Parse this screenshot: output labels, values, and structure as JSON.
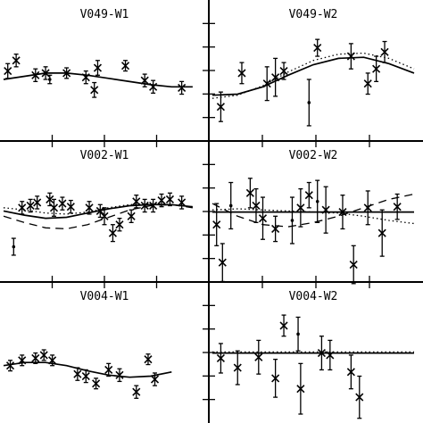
{
  "chart_data": {
    "type": "scatter",
    "panels": [
      {
        "title": "V049-W1",
        "row": 0,
        "col": 0,
        "ylim": [
          0,
          10
        ],
        "points": [
          {
            "x": 0.05,
            "y": 5.8,
            "err": 0.7,
            "m": "x"
          },
          {
            "x": 0.15,
            "y": 6.8,
            "err": 0.6,
            "m": "x"
          },
          {
            "x": 0.38,
            "y": 5.4,
            "err": 0.6,
            "m": "x"
          },
          {
            "x": 0.5,
            "y": 5.6,
            "err": 0.6,
            "m": "x"
          },
          {
            "x": 0.55,
            "y": 5.0,
            "err": 0.4,
            "m": "dot"
          },
          {
            "x": 0.75,
            "y": 5.6,
            "err": 0.5,
            "m": "x"
          },
          {
            "x": 0.98,
            "y": 5.2,
            "err": 0.6,
            "m": "x"
          },
          {
            "x": 1.08,
            "y": 4.0,
            "err": 0.7,
            "m": "x"
          },
          {
            "x": 1.12,
            "y": 6.1,
            "err": 0.7,
            "m": "x"
          },
          {
            "x": 1.45,
            "y": 6.3,
            "err": 0.5,
            "m": "x"
          },
          {
            "x": 1.68,
            "y": 4.9,
            "err": 0.6,
            "m": "x"
          },
          {
            "x": 1.78,
            "y": 4.3,
            "err": 0.6,
            "m": "x"
          },
          {
            "x": 2.12,
            "y": 4.2,
            "err": 0.6,
            "m": "x"
          }
        ],
        "models": [
          {
            "style": "solid",
            "x": [
              0,
              0.25,
              0.5,
              0.75,
              1.0,
              1.25,
              1.5,
              1.75,
              2.0,
              2.25
            ],
            "y": [
              5.0,
              5.3,
              5.6,
              5.6,
              5.4,
              5.1,
              4.8,
              4.5,
              4.3,
              4.3
            ]
          }
        ]
      },
      {
        "title": "V049-W2",
        "row": 0,
        "col": 1,
        "ylim": [
          0,
          10
        ],
        "points": [
          {
            "x": 0.1,
            "y": 2.4,
            "err": 1.4,
            "m": "x"
          },
          {
            "x": 0.35,
            "y": 5.6,
            "err": 1.0,
            "m": "x"
          },
          {
            "x": 0.65,
            "y": 4.6,
            "err": 1.6,
            "m": "x"
          },
          {
            "x": 0.75,
            "y": 5.2,
            "err": 1.8,
            "m": "x"
          },
          {
            "x": 0.85,
            "y": 5.8,
            "err": 0.8,
            "m": "x"
          },
          {
            "x": 1.15,
            "y": 2.8,
            "err": 2.2,
            "m": "dot"
          },
          {
            "x": 1.25,
            "y": 8.0,
            "err": 0.8,
            "m": "x"
          },
          {
            "x": 1.65,
            "y": 7.2,
            "err": 1.2,
            "m": "x"
          },
          {
            "x": 1.85,
            "y": 4.6,
            "err": 1.0,
            "m": "x"
          },
          {
            "x": 1.95,
            "y": 6.0,
            "err": 1.2,
            "m": "x"
          },
          {
            "x": 2.05,
            "y": 7.6,
            "err": 1.0,
            "m": "x"
          }
        ],
        "models": [
          {
            "style": "solid",
            "x": [
              0,
              0.3,
              0.6,
              0.9,
              1.2,
              1.5,
              1.8,
              2.1,
              2.4
            ],
            "y": [
              3.5,
              3.6,
              4.3,
              5.4,
              6.4,
              7.0,
              7.1,
              6.5,
              5.6
            ]
          },
          {
            "style": "dotted",
            "x": [
              0,
              0.3,
              0.6,
              0.9,
              1.2,
              1.5,
              1.8,
              2.1,
              2.4
            ],
            "y": [
              3.2,
              3.5,
              4.4,
              5.7,
              6.8,
              7.4,
              7.5,
              7.0,
              6.0
            ]
          }
        ]
      },
      {
        "title": "V002-W1",
        "row": 1,
        "col": 0,
        "ylim": [
          0,
          10
        ],
        "points": [
          {
            "x": 0.12,
            "y": 2.5,
            "err": 0.8,
            "m": "dot"
          },
          {
            "x": 0.22,
            "y": 6.2,
            "err": 0.6,
            "m": "x"
          },
          {
            "x": 0.32,
            "y": 6.4,
            "err": 0.6,
            "m": "x"
          },
          {
            "x": 0.4,
            "y": 6.7,
            "err": 0.6,
            "m": "x"
          },
          {
            "x": 0.55,
            "y": 7.0,
            "err": 0.6,
            "m": "x"
          },
          {
            "x": 0.6,
            "y": 6.2,
            "err": 0.8,
            "m": "x"
          },
          {
            "x": 0.7,
            "y": 6.6,
            "err": 0.6,
            "m": "x"
          },
          {
            "x": 0.8,
            "y": 6.3,
            "err": 0.6,
            "m": "x"
          },
          {
            "x": 1.02,
            "y": 6.2,
            "err": 0.6,
            "m": "x"
          },
          {
            "x": 1.15,
            "y": 5.9,
            "err": 0.6,
            "m": "x"
          },
          {
            "x": 1.2,
            "y": 5.4,
            "err": 0.8,
            "m": "x"
          },
          {
            "x": 1.3,
            "y": 3.8,
            "err": 0.8,
            "m": "x"
          },
          {
            "x": 1.38,
            "y": 4.6,
            "err": 0.6,
            "m": "x"
          },
          {
            "x": 1.52,
            "y": 5.4,
            "err": 0.6,
            "m": "x"
          },
          {
            "x": 1.58,
            "y": 6.8,
            "err": 0.6,
            "m": "x"
          },
          {
            "x": 1.68,
            "y": 6.4,
            "err": 0.6,
            "m": "x"
          },
          {
            "x": 1.78,
            "y": 6.4,
            "err": 0.6,
            "m": "x"
          },
          {
            "x": 1.88,
            "y": 6.9,
            "err": 0.6,
            "m": "x"
          },
          {
            "x": 1.98,
            "y": 7.0,
            "err": 0.6,
            "m": "x"
          },
          {
            "x": 2.12,
            "y": 6.7,
            "err": 0.6,
            "m": "x"
          }
        ],
        "models": [
          {
            "style": "solid",
            "x": [
              0,
              0.25,
              0.5,
              0.75,
              1.0,
              1.25,
              1.5,
              1.75,
              2.0,
              2.25
            ],
            "y": [
              5.9,
              5.5,
              5.2,
              5.3,
              5.7,
              6.1,
              6.4,
              6.5,
              6.5,
              6.3
            ]
          },
          {
            "style": "dotted",
            "x": [
              0,
              0.25,
              0.5,
              0.75,
              1.0,
              1.25,
              1.5,
              1.75,
              2.0,
              2.25
            ],
            "y": [
              6.2,
              6.0,
              5.7,
              5.6,
              5.8,
              6.2,
              6.5,
              6.6,
              6.5,
              6.3
            ]
          },
          {
            "style": "dashed",
            "x": [
              0,
              0.25,
              0.5,
              0.75,
              1.0,
              1.25,
              1.5,
              1.75,
              2.0,
              2.25
            ],
            "y": [
              5.4,
              4.8,
              4.3,
              4.2,
              4.6,
              5.3,
              6.0,
              6.4,
              6.5,
              6.2
            ]
          }
        ]
      },
      {
        "title": "V002-W2",
        "row": 1,
        "col": 1,
        "ylim": [
          0,
          10
        ],
        "points": [
          {
            "x": 0.05,
            "y": 4.6,
            "err": 2.0,
            "m": "x"
          },
          {
            "x": 0.12,
            "y": 1.0,
            "err": 1.8,
            "m": "x"
          },
          {
            "x": 0.22,
            "y": 6.4,
            "err": 2.2,
            "m": "dot"
          },
          {
            "x": 0.45,
            "y": 7.6,
            "err": 1.4,
            "m": "x"
          },
          {
            "x": 0.52,
            "y": 6.4,
            "err": 1.6,
            "m": "x"
          },
          {
            "x": 0.6,
            "y": 5.2,
            "err": 2.0,
            "m": "x"
          },
          {
            "x": 0.75,
            "y": 4.2,
            "err": 1.2,
            "m": "x"
          },
          {
            "x": 0.95,
            "y": 5.0,
            "err": 2.2,
            "m": "dot"
          },
          {
            "x": 1.05,
            "y": 6.2,
            "err": 1.8,
            "m": "x"
          },
          {
            "x": 1.15,
            "y": 7.4,
            "err": 1.2,
            "m": "x"
          },
          {
            "x": 1.25,
            "y": 6.8,
            "err": 2.0,
            "m": "dot"
          },
          {
            "x": 1.35,
            "y": 6.0,
            "err": 2.2,
            "m": "x"
          },
          {
            "x": 1.55,
            "y": 5.8,
            "err": 1.6,
            "m": "x"
          },
          {
            "x": 1.68,
            "y": 0.8,
            "err": 1.8,
            "m": "x"
          },
          {
            "x": 1.85,
            "y": 6.2,
            "err": 1.6,
            "m": "x"
          },
          {
            "x": 2.02,
            "y": 3.8,
            "err": 2.2,
            "m": "x"
          },
          {
            "x": 2.2,
            "y": 6.3,
            "err": 1.2,
            "m": "x"
          }
        ],
        "models": [
          {
            "style": "solid",
            "x": [
              0,
              2.4
            ],
            "y": [
              5.8,
              5.8
            ]
          },
          {
            "style": "dotted",
            "x": [
              0,
              0.3,
              0.6,
              0.9,
              1.2,
              1.5,
              1.8,
              2.1,
              2.4
            ],
            "y": [
              6.0,
              6.1,
              6.0,
              5.9,
              5.8,
              5.7,
              5.4,
              5.0,
              4.7
            ]
          },
          {
            "style": "dashed",
            "x": [
              0,
              0.3,
              0.6,
              0.9,
              1.2,
              1.5,
              1.8,
              2.1,
              2.4
            ],
            "y": [
              6.6,
              5.4,
              4.6,
              4.4,
              4.8,
              5.4,
              6.2,
              7.0,
              7.5
            ]
          }
        ]
      },
      {
        "title": "V004-W1",
        "row": 2,
        "col": 0,
        "ylim": [
          0,
          10
        ],
        "points": [
          {
            "x": 0.08,
            "y": 4.6,
            "err": 0.5,
            "m": "x"
          },
          {
            "x": 0.22,
            "y": 5.1,
            "err": 0.5,
            "m": "x"
          },
          {
            "x": 0.38,
            "y": 5.3,
            "err": 0.5,
            "m": "x"
          },
          {
            "x": 0.48,
            "y": 5.6,
            "err": 0.5,
            "m": "x"
          },
          {
            "x": 0.58,
            "y": 5.1,
            "err": 0.5,
            "m": "x"
          },
          {
            "x": 0.88,
            "y": 3.8,
            "err": 0.6,
            "m": "x"
          },
          {
            "x": 0.98,
            "y": 3.6,
            "err": 0.6,
            "m": "x"
          },
          {
            "x": 1.1,
            "y": 2.9,
            "err": 0.5,
            "m": "x"
          },
          {
            "x": 1.25,
            "y": 4.2,
            "err": 0.6,
            "m": "x"
          },
          {
            "x": 1.38,
            "y": 3.7,
            "err": 0.6,
            "m": "x"
          },
          {
            "x": 1.58,
            "y": 2.1,
            "err": 0.6,
            "m": "x"
          },
          {
            "x": 1.72,
            "y": 5.2,
            "err": 0.5,
            "m": "x"
          },
          {
            "x": 1.8,
            "y": 3.3,
            "err": 0.6,
            "m": "x"
          }
        ],
        "models": [
          {
            "style": "solid",
            "x": [
              0,
              0.25,
              0.5,
              0.75,
              1.0,
              1.25,
              1.5,
              1.75,
              2.0
            ],
            "y": [
              4.6,
              4.9,
              4.9,
              4.6,
              4.1,
              3.7,
              3.5,
              3.6,
              4.0
            ]
          }
        ]
      },
      {
        "title": "V004-W2",
        "row": 2,
        "col": 1,
        "ylim": [
          0,
          10
        ],
        "points": [
          {
            "x": 0.1,
            "y": 5.3,
            "err": 1.4,
            "m": "x"
          },
          {
            "x": 0.3,
            "y": 4.4,
            "err": 1.6,
            "m": "x"
          },
          {
            "x": 0.55,
            "y": 5.4,
            "err": 1.6,
            "m": "x"
          },
          {
            "x": 0.75,
            "y": 3.4,
            "err": 1.8,
            "m": "x"
          },
          {
            "x": 0.85,
            "y": 8.4,
            "err": 1.0,
            "m": "x"
          },
          {
            "x": 1.02,
            "y": 7.6,
            "err": 1.6,
            "m": "dot"
          },
          {
            "x": 1.05,
            "y": 2.4,
            "err": 2.4,
            "m": "x"
          },
          {
            "x": 1.3,
            "y": 5.8,
            "err": 1.6,
            "m": "x"
          },
          {
            "x": 1.4,
            "y": 5.6,
            "err": 1.4,
            "m": "x"
          },
          {
            "x": 1.65,
            "y": 4.0,
            "err": 1.6,
            "m": "x"
          },
          {
            "x": 1.75,
            "y": 1.6,
            "err": 2.0,
            "m": "x"
          }
        ],
        "models": [
          {
            "style": "solid",
            "x": [
              0,
              2.4
            ],
            "y": [
              5.8,
              5.8
            ]
          },
          {
            "style": "dotted",
            "x": [
              0,
              2.4
            ],
            "y": [
              5.9,
              5.9
            ]
          }
        ]
      }
    ]
  }
}
